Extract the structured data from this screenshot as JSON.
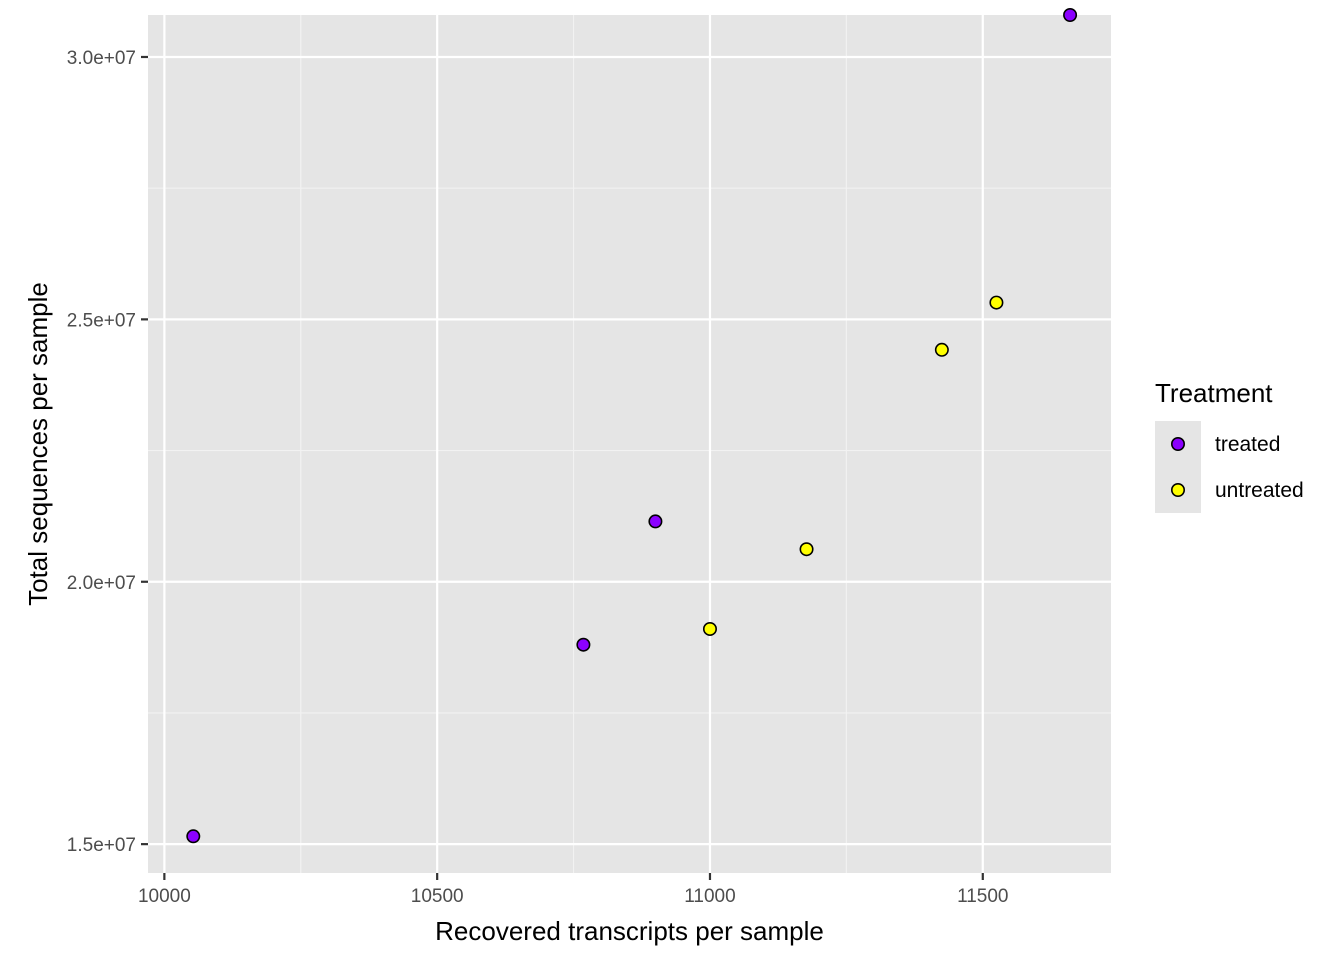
{
  "chart_data": {
    "type": "scatter",
    "title": "",
    "xlabel": "Recovered transcripts per sample",
    "ylabel": "Total sequences per sample",
    "xlim": [
      9970,
      11735
    ],
    "ylim": [
      14450000,
      30800000
    ],
    "x_ticks": [
      {
        "value": 10000,
        "label": "10000"
      },
      {
        "value": 10500,
        "label": "10500"
      },
      {
        "value": 11000,
        "label": "11000"
      },
      {
        "value": 11500,
        "label": "11500"
      }
    ],
    "x_minor": [
      10250,
      10750,
      11250
    ],
    "y_ticks": [
      {
        "value": 15000000,
        "label": "1.5e+07"
      },
      {
        "value": 20000000,
        "label": "2.0e+07"
      },
      {
        "value": 25000000,
        "label": "2.5e+07"
      },
      {
        "value": 30000000,
        "label": "3.0e+07"
      }
    ],
    "y_minor": [
      17500000,
      22500000,
      27500000
    ],
    "grid": true,
    "background": "#e5e5e5",
    "legend": {
      "title": "Treatment",
      "position": "right"
    },
    "series": [
      {
        "name": "treated",
        "color": "#8b00ff",
        "points": [
          {
            "x": 10053,
            "y": 15150000
          },
          {
            "x": 10768,
            "y": 18800000
          },
          {
            "x": 10900,
            "y": 21150000
          },
          {
            "x": 11660,
            "y": 30800000
          }
        ]
      },
      {
        "name": "untreated",
        "color": "#ffff00",
        "points": [
          {
            "x": 11000,
            "y": 19100000
          },
          {
            "x": 11177,
            "y": 20620000
          },
          {
            "x": 11425,
            "y": 24420000
          },
          {
            "x": 11525,
            "y": 25320000
          }
        ]
      }
    ]
  }
}
